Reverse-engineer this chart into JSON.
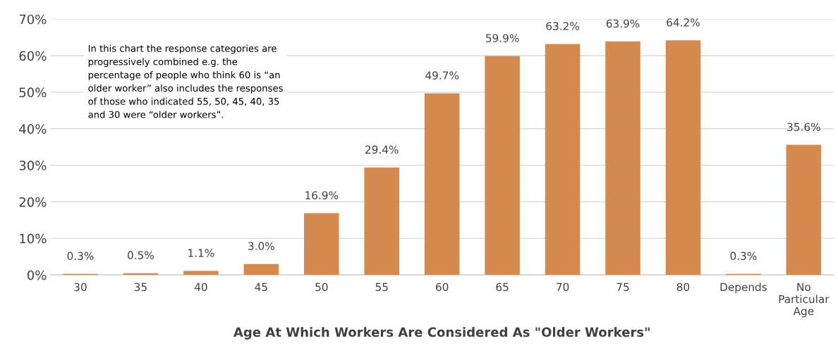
{
  "chart_data": {
    "type": "bar",
    "xlabel": "Age At Which Workers Are Considered As \"Older Workers\"",
    "categories": [
      "30",
      "35",
      "40",
      "45",
      "50",
      "55",
      "60",
      "65",
      "70",
      "75",
      "80",
      "Depends",
      "No\nParticular\nAge"
    ],
    "values": [
      0.3,
      0.5,
      1.1,
      3.0,
      16.9,
      29.4,
      49.7,
      59.9,
      63.2,
      63.9,
      64.2,
      0.3,
      35.6
    ],
    "value_labels": [
      "0.3%",
      "0.5%",
      "1.1%",
      "3.0%",
      "16.9%",
      "29.4%",
      "49.7%",
      "59.9%",
      "63.2%",
      "63.9%",
      "64.2%",
      "0.3%",
      "35.6%"
    ],
    "color": "#d4894f",
    "ylim": [
      0,
      70
    ],
    "yticks": [
      {
        "value": 0,
        "label": "0%"
      },
      {
        "value": 10,
        "label": "10%"
      },
      {
        "value": 20,
        "label": "20%"
      },
      {
        "value": 30,
        "label": "30%"
      },
      {
        "value": 40,
        "label": "40%"
      },
      {
        "value": 50,
        "label": "50%"
      },
      {
        "value": 60,
        "label": "60%"
      },
      {
        "value": 70,
        "label": "70%"
      }
    ],
    "grid": "y",
    "annotations": [
      "In this chart the response categories are\nprogressively combined e.g. the\npercentage of people who think 60 is “an\nolder worker” also includes the responses\nof those who indicated 55, 50, 45, 40, 35\nand 30 were “older workers”."
    ]
  }
}
